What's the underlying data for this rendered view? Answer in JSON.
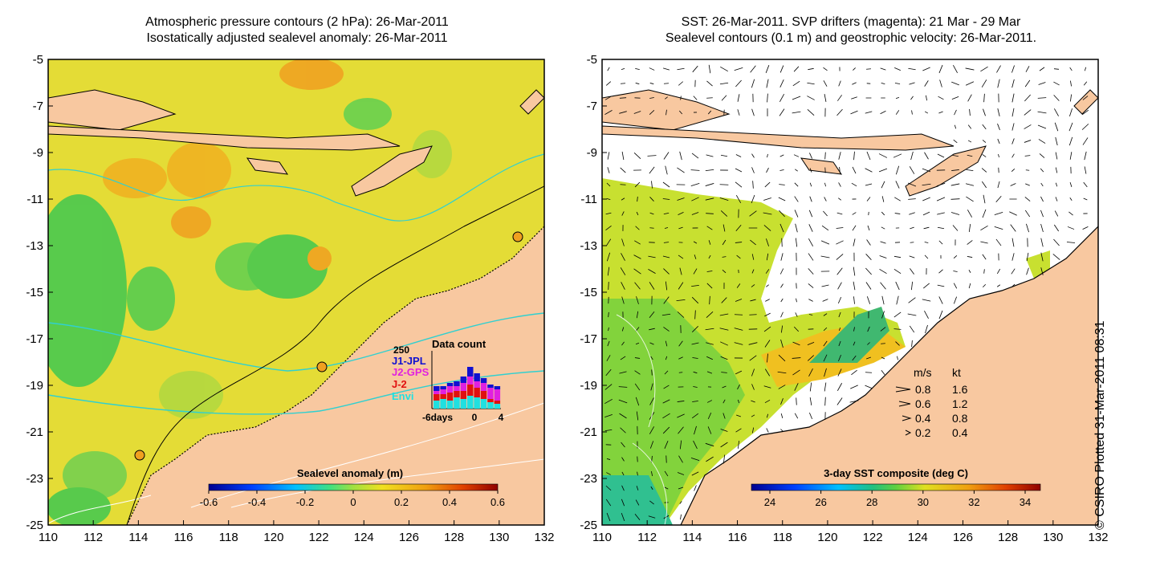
{
  "left_panel": {
    "title_line1": "Atmospheric pressure contours (2 hPa): 26-Mar-2011",
    "title_line2": "Isostatically adjusted sealevel anomaly: 26-Mar-2011",
    "colorbar_label": "Sealevel anomaly (m)",
    "colorbar_ticks": [
      "-0.6",
      "-0.4",
      "-0.2",
      "0",
      "0.2",
      "0.4",
      "0.6"
    ],
    "inset": {
      "title": "Data count",
      "ymax_label": "250",
      "legend": [
        {
          "label": "J1-JPL",
          "color": "#1010d0"
        },
        {
          "label": "J2-GPS",
          "color": "#e020e0"
        },
        {
          "label": "J-2",
          "color": "#e01010"
        },
        {
          "label": "Envi",
          "color": "#20e0e0"
        }
      ],
      "x_labels": [
        "-6days",
        "0",
        "4"
      ]
    }
  },
  "right_panel": {
    "title_line1": "SST: 26-Mar-2011. SVP drifters (magenta): 21 Mar - 29 Mar",
    "title_line2": "Sealevel contours (0.1 m) and geostrophic velocity: 26-Mar-2011.",
    "colorbar_label": "3-day SST composite (deg C)",
    "colorbar_ticks": [
      "24",
      "26",
      "28",
      "30",
      "32",
      "34"
    ],
    "velocity_legend": {
      "header_ms": "m/s",
      "header_kt": "kt",
      "rows": [
        {
          "ms": "0.8",
          "kt": "1.6"
        },
        {
          "ms": "0.6",
          "kt": "1.2"
        },
        {
          "ms": "0.4",
          "kt": "0.8"
        },
        {
          "ms": "0.2",
          "kt": "0.4"
        }
      ]
    }
  },
  "axes": {
    "lat_labels": [
      "-5",
      "-7",
      "-9",
      "-11",
      "-13",
      "-15",
      "-17",
      "-19",
      "-21",
      "-23",
      "-25"
    ],
    "lon_labels": [
      "110",
      "112",
      "114",
      "116",
      "118",
      "120",
      "122",
      "124",
      "126",
      "128",
      "130",
      "132"
    ]
  },
  "copyright": "© CSIRO Plotted 31-Mar-2011 08:31",
  "colors": {
    "land": "#f8c8a0",
    "ocean_left": "#e8d830",
    "ocean_right": "#ffffff",
    "contour_cyan": "#30d0d0"
  }
}
